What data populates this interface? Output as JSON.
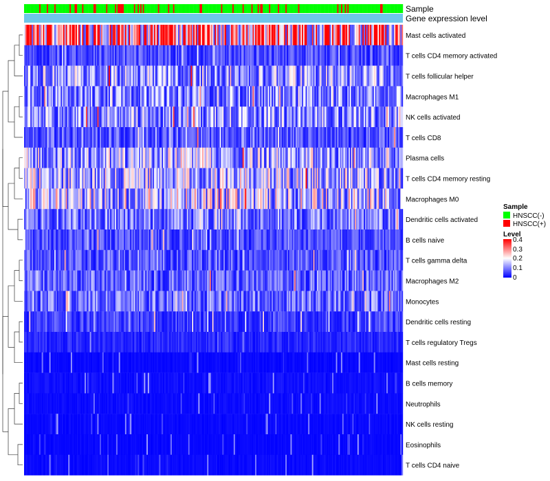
{
  "chart_data": {
    "type": "heatmap",
    "annotation_tracks": [
      "Sample",
      "Gene expression level"
    ],
    "rows": [
      "Mast cells activated",
      "T cells CD4 memory activated",
      "T cells follicular helper",
      "Macrophages M1",
      "NK cells activated",
      "T cells CD8",
      "Plasma cells",
      "T cells CD4 memory resting",
      "Macrophages M0",
      "Dendritic cells activated",
      "B cells naive",
      "T cells gamma delta",
      "Macrophages M2",
      "Monocytes",
      "Dendritic cells resting",
      "T cells regulatory  Tregs",
      "Mast cells resting",
      "B cells memory",
      "Neutrophils",
      "NK cells resting",
      "Eosinophils",
      "T cells CD4 naive"
    ],
    "row_typical_level": [
      0.32,
      0.06,
      0.13,
      0.11,
      0.12,
      0.07,
      0.14,
      0.15,
      0.16,
      0.1,
      0.06,
      0.07,
      0.08,
      0.09,
      0.05,
      0.03,
      0.01,
      0.02,
      0.015,
      0.01,
      0.008,
      0.012
    ],
    "n_samples": 300,
    "sample_groups": {
      "HNSCC(-)": 252,
      "HNSCC(+)": 48
    },
    "legends": {
      "sample": {
        "title": "Sample",
        "entries": [
          {
            "label": "HNSCC(-)",
            "color": "#00ff00"
          },
          {
            "label": "HNSCC(+)",
            "color": "#ff0000"
          }
        ]
      },
      "level": {
        "title": "Level",
        "ticks": [
          "0.4",
          "0.3",
          "0.2",
          "0.1",
          "0"
        ],
        "range": [
          0,
          0.4
        ],
        "colors": [
          "#0000ff",
          "#ffffff",
          "#ff0000"
        ]
      }
    },
    "track_colors": {
      "gene_expression_level": "#6ec6ea"
    }
  }
}
